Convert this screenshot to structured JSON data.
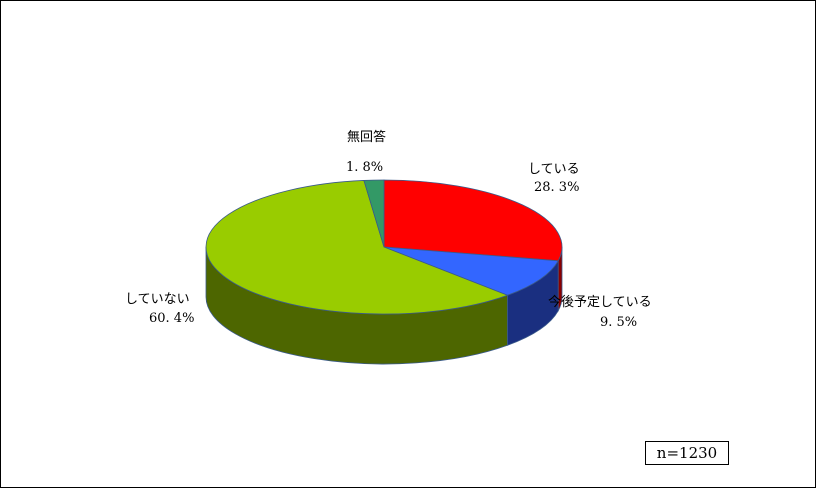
{
  "chart_data": {
    "type": "pie",
    "style": "3d",
    "slices": [
      {
        "label": "している",
        "value": 28.3,
        "value_label": "28. 3%",
        "color": "#ff0000",
        "side_color": "#8b0000"
      },
      {
        "label": "今後予定している",
        "value": 9.5,
        "value_label": "9. 5%",
        "color": "#3366ff",
        "side_color": "#1a2f80"
      },
      {
        "label": "していない",
        "value": 60.4,
        "value_label": "60. 4%",
        "color": "#99cc00",
        "side_color": "#4d6600"
      },
      {
        "label": "無回答",
        "value": 1.8,
        "value_label": "1. 8%",
        "color": "#339966",
        "side_color": "#1a4d33"
      }
    ],
    "sample_size": "n=1230"
  }
}
